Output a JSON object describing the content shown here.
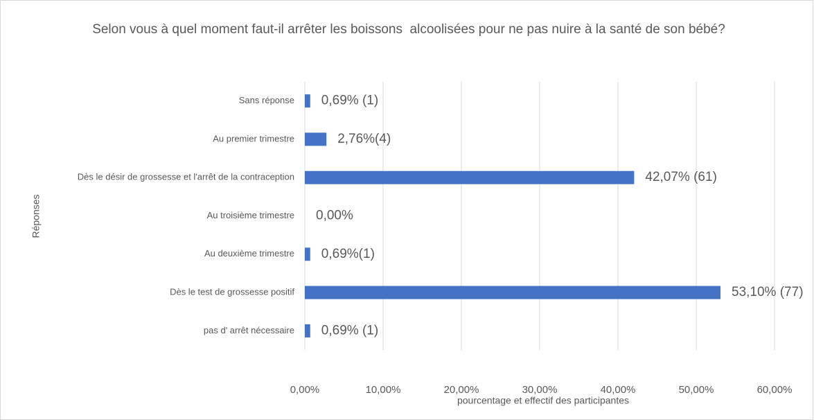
{
  "chart_data": {
    "type": "hbar",
    "title": "Selon vous à quel moment faut-il arrêter les boissons  alcoolisées pour ne pas nuire à la santé de son bébé?",
    "x_label": "pourcentage et effectif des participantes",
    "y_label": "Réponses",
    "categories": [
      "Sans réponse",
      "Au premier trimestre",
      "Dès le désir de grossesse et l'arrêt de la contraception",
      "Au troisième trimestre",
      "Au deuxième trimestre",
      "Dès le test de grossesse positif",
      "pas d' arrêt nécessaire"
    ],
    "values": [
      0.69,
      2.76,
      42.07,
      0,
      0.69,
      53.1,
      0.69
    ],
    "value_labels": [
      "0,69% (1)",
      "2,76%(4)",
      "42,07% (61)",
      "0,00%",
      "0,69%(1)",
      "53,10% (77)",
      "0,69% (1)"
    ],
    "color": "#4472c4",
    "xlim": [
      0,
      60
    ],
    "xticks": [
      {
        "value": 0,
        "label": "0,00%"
      },
      {
        "value": 10,
        "label": "10,00%"
      },
      {
        "value": 20,
        "label": "20,00%"
      },
      {
        "value": 30,
        "label": "30,00%"
      },
      {
        "value": 40,
        "label": "40,00%"
      },
      {
        "value": 50,
        "label": "50,00%"
      },
      {
        "value": 60,
        "label": "60,00%"
      }
    ],
    "grid": true
  }
}
